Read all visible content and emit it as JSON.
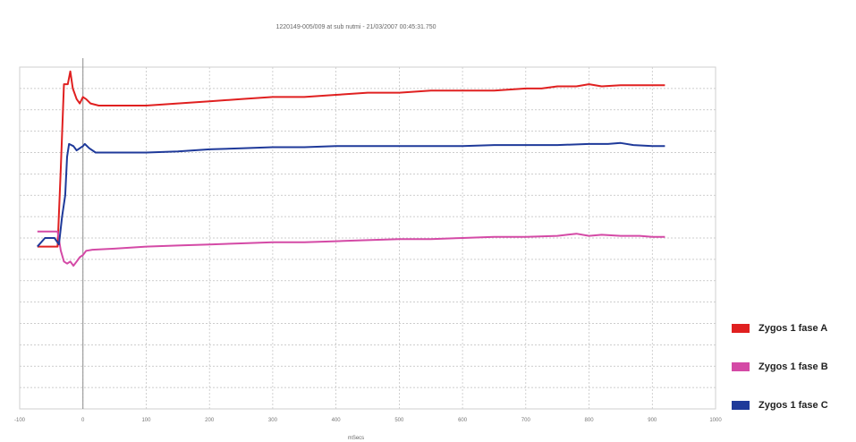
{
  "chart_data": {
    "type": "line",
    "title": "1220149-005/009 at sub nutmi  -  21/03/2007 00:45:31.750",
    "xlabel": "mSecs",
    "ylabel": "",
    "xlim": [
      -100,
      1000
    ],
    "ylim": [
      0,
      16
    ],
    "grid": true,
    "legend_position": "bottom-right",
    "x_ticks": [
      -100,
      0,
      100,
      200,
      300,
      400,
      500,
      600,
      700,
      800,
      900,
      1000
    ],
    "x_tick_labels": [
      "-100",
      "0",
      "100",
      "200",
      "300",
      "400",
      "500",
      "600",
      "700",
      "800",
      "900",
      "1000"
    ],
    "y_tick_labels": [
      "",
      "",
      "",
      "",
      "",
      "",
      "",
      "",
      "",
      "",
      "",
      "",
      "",
      "",
      "",
      "",
      ""
    ],
    "series": [
      {
        "name": "Zygos 1 fase A",
        "color": "#e02020",
        "x": [
          -72,
          -40,
          -35,
          -30,
          -24,
          -20,
          -16,
          -10,
          -5,
          0,
          5,
          12,
          25,
          50,
          100,
          150,
          200,
          250,
          300,
          350,
          400,
          450,
          500,
          550,
          600,
          650,
          700,
          725,
          750,
          780,
          800,
          820,
          850,
          880,
          900,
          920
        ],
        "y": [
          7.6,
          7.6,
          11.3,
          15.2,
          15.2,
          15.8,
          15.0,
          14.5,
          14.3,
          14.6,
          14.5,
          14.3,
          14.2,
          14.2,
          14.2,
          14.3,
          14.4,
          14.5,
          14.6,
          14.6,
          14.7,
          14.8,
          14.8,
          14.9,
          14.9,
          14.9,
          15.0,
          15.0,
          15.1,
          15.1,
          15.2,
          15.1,
          15.15,
          15.15,
          15.15,
          15.15
        ]
      },
      {
        "name": "Zygos 1 fase B",
        "color": "#d44aa6",
        "x": [
          -72,
          -40,
          -35,
          -30,
          -25,
          -20,
          -15,
          -10,
          -5,
          0,
          5,
          15,
          50,
          100,
          150,
          200,
          250,
          300,
          350,
          400,
          450,
          500,
          550,
          600,
          650,
          700,
          750,
          780,
          800,
          820,
          850,
          880,
          900,
          920
        ],
        "y": [
          8.3,
          8.3,
          7.4,
          6.9,
          6.8,
          6.9,
          6.7,
          6.9,
          7.1,
          7.2,
          7.4,
          7.45,
          7.5,
          7.6,
          7.65,
          7.7,
          7.75,
          7.8,
          7.8,
          7.85,
          7.9,
          7.95,
          7.95,
          8.0,
          8.05,
          8.05,
          8.1,
          8.2,
          8.1,
          8.15,
          8.1,
          8.1,
          8.05,
          8.05
        ]
      },
      {
        "name": "Zygos 1 fase C",
        "color": "#1f3a9a",
        "x": [
          -72,
          -60,
          -45,
          -38,
          -33,
          -28,
          -25,
          -22,
          -15,
          -10,
          -5,
          0,
          3,
          10,
          20,
          50,
          100,
          150,
          200,
          250,
          300,
          350,
          400,
          450,
          500,
          550,
          600,
          650,
          700,
          750,
          800,
          830,
          850,
          870,
          900,
          920
        ],
        "y": [
          7.6,
          8.0,
          8.0,
          7.7,
          9.0,
          10.0,
          11.8,
          12.4,
          12.3,
          12.1,
          12.2,
          12.3,
          12.4,
          12.2,
          12.0,
          12.0,
          12.0,
          12.05,
          12.15,
          12.2,
          12.25,
          12.25,
          12.3,
          12.3,
          12.3,
          12.3,
          12.3,
          12.35,
          12.35,
          12.35,
          12.4,
          12.4,
          12.45,
          12.35,
          12.3,
          12.3
        ]
      }
    ]
  }
}
